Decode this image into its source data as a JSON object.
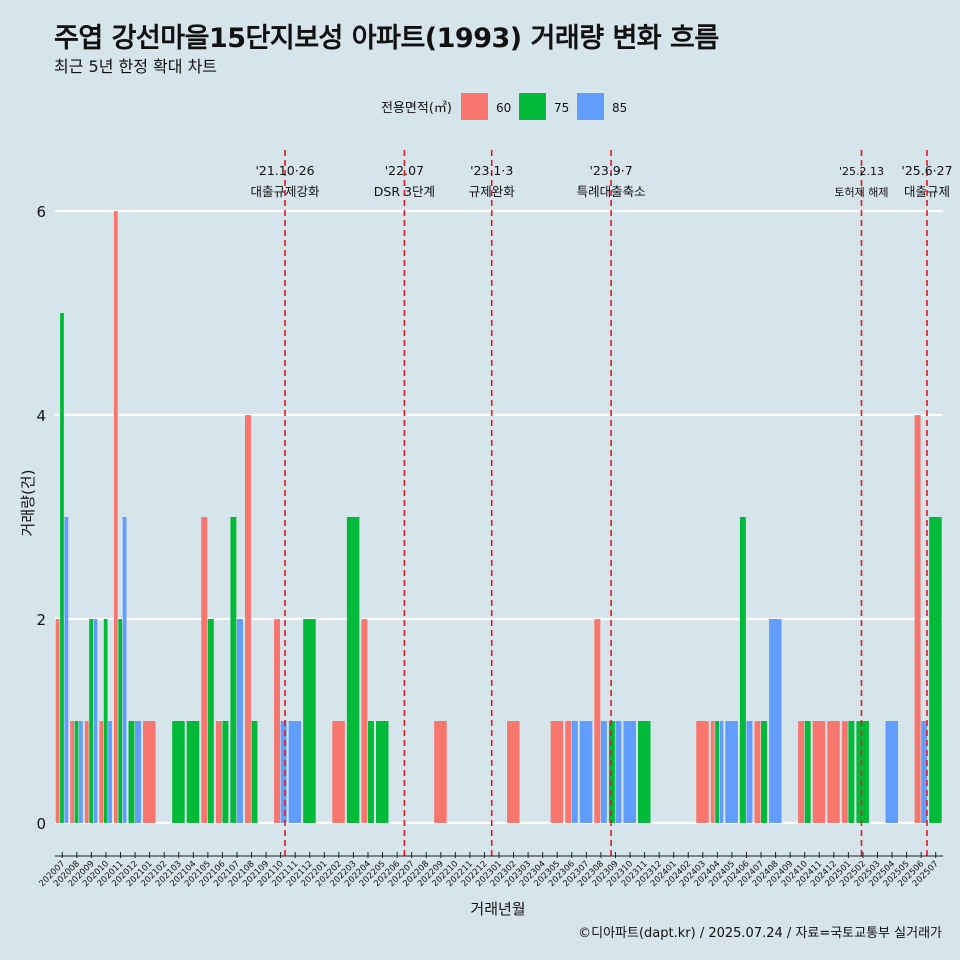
{
  "title": "주엽 강선마을15단지보성 아파트(1993) 거래량 변화 흐름",
  "subtitle": "최근 5년 한정 확대 차트",
  "caption": "©디아파트(dapt.kr) / 2025.07.24 / 자료=국토교통부 실거래가",
  "chart_data": {
    "type": "bar",
    "xlabel": "거래년월",
    "ylabel": "거래량(건)",
    "ylim": [
      0,
      6
    ],
    "yticks": [
      0,
      2,
      4,
      6
    ],
    "legend": {
      "title": "전용면적(㎡)",
      "position": "top",
      "entries": [
        {
          "name": "60",
          "color": "#f8766d"
        },
        {
          "name": "75",
          "color": "#00ba38"
        },
        {
          "name": "85",
          "color": "#619cff"
        }
      ]
    },
    "categories": [
      "202007",
      "202008",
      "202009",
      "202010",
      "202011",
      "202012",
      "202101",
      "202102",
      "202103",
      "202104",
      "202105",
      "202106",
      "202107",
      "202108",
      "202109",
      "202110",
      "202111",
      "202112",
      "202201",
      "202202",
      "202203",
      "202204",
      "202205",
      "202206",
      "202207",
      "202208",
      "202209",
      "202210",
      "202211",
      "202212",
      "202301",
      "202302",
      "202303",
      "202304",
      "202305",
      "202306",
      "202307",
      "202308",
      "202309",
      "202310",
      "202311",
      "202312",
      "202401",
      "202402",
      "202403",
      "202404",
      "202405",
      "202406",
      "202407",
      "202408",
      "202409",
      "202410",
      "202411",
      "202412",
      "202501",
      "202502",
      "202503",
      "202504",
      "202505",
      "202506",
      "202507"
    ],
    "series": [
      {
        "name": "60",
        "color": "#f8766d",
        "values": [
          2,
          1,
          1,
          1,
          6,
          0,
          1,
          0,
          0,
          0,
          3,
          1,
          0,
          4,
          0,
          2,
          0,
          0,
          0,
          1,
          0,
          2,
          0,
          0,
          0,
          0,
          1,
          0,
          0,
          0,
          0,
          1,
          0,
          0,
          1,
          1,
          0,
          2,
          0,
          0,
          0,
          0,
          0,
          0,
          1,
          1,
          0,
          0,
          1,
          0,
          0,
          1,
          1,
          1,
          1,
          0,
          0,
          0,
          0,
          4,
          0
        ]
      },
      {
        "name": "75",
        "color": "#00ba38",
        "values": [
          5,
          1,
          2,
          2,
          2,
          1,
          0,
          0,
          1,
          1,
          2,
          1,
          3,
          1,
          0,
          0,
          0,
          2,
          0,
          0,
          3,
          1,
          1,
          0,
          0,
          0,
          0,
          0,
          0,
          0,
          0,
          0,
          0,
          0,
          0,
          0,
          0,
          0,
          1,
          0,
          1,
          0,
          0,
          0,
          0,
          1,
          0,
          3,
          1,
          0,
          0,
          1,
          0,
          0,
          1,
          1,
          0,
          0,
          0,
          0,
          3
        ]
      },
      {
        "name": "85",
        "color": "#619cff",
        "values": [
          3,
          1,
          2,
          1,
          3,
          1,
          0,
          0,
          0,
          0,
          0,
          0,
          2,
          0,
          0,
          1,
          1,
          0,
          0,
          0,
          0,
          0,
          0,
          0,
          0,
          0,
          0,
          0,
          0,
          0,
          0,
          0,
          0,
          0,
          0,
          1,
          1,
          1,
          1,
          1,
          0,
          0,
          0,
          0,
          0,
          1,
          1,
          1,
          0,
          2,
          0,
          0,
          0,
          0,
          0,
          0,
          0,
          1,
          0,
          1,
          0
        ]
      }
    ],
    "annotations": [
      {
        "date": "'21.10·26",
        "label": "대출규제강화",
        "x": "202110",
        "offset": 0.8,
        "small": false
      },
      {
        "date": "'22.07",
        "label": "DSR 3단계",
        "x": "202207",
        "offset": 0.0,
        "small": false
      },
      {
        "date": "'23.1·3",
        "label": "규제완화",
        "x": "202301",
        "offset": 0.0,
        "small": false
      },
      {
        "date": "'23.9·7",
        "label": "특례대출축소",
        "x": "202309",
        "offset": 0.2,
        "small": false
      },
      {
        "date": "'25.2.13",
        "label": "토허제 해제",
        "x": "202502",
        "offset": 0.4,
        "small": true
      },
      {
        "date": "'25.6·27",
        "label": "대출규제",
        "x": "202506",
        "offset": 0.9,
        "small": false
      }
    ]
  }
}
